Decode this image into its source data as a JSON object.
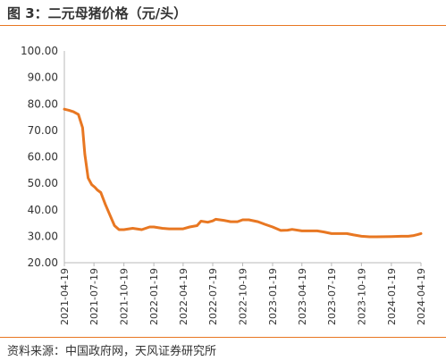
{
  "title": "图 3：二元母猪价格（元/头）",
  "source": "资料来源：中国政府网，天风证券研究所",
  "colors": {
    "accent": "#e87722",
    "line": "#e87722",
    "axis": "#b8b8b8"
  },
  "chart_data": {
    "type": "line",
    "title": "图 3：二元母猪价格（元/头）",
    "xlabel": "",
    "ylabel": "",
    "ylim": [
      20,
      100
    ],
    "yticks": [
      "100.00",
      "90.00",
      "80.00",
      "70.00",
      "60.00",
      "50.00",
      "40.00",
      "30.00",
      "20.00"
    ],
    "xticks": [
      "2021-04-19",
      "2021-07-19",
      "2021-10-19",
      "2022-01-19",
      "2022-04-19",
      "2022-07-19",
      "2022-10-19",
      "2023-01-19",
      "2023-04-19",
      "2023-07-19",
      "2023-10-19",
      "2024-01-19",
      "2024-04-19"
    ],
    "grid": false,
    "legend": "none",
    "series": [
      {
        "name": "",
        "points": [
          [
            "2021-04-19",
            78.0
          ],
          [
            "2021-05-03",
            77.6
          ],
          [
            "2021-05-17",
            77.0
          ],
          [
            "2021-06-01",
            76.0
          ],
          [
            "2021-06-14",
            71.0
          ],
          [
            "2021-06-21",
            61.0
          ],
          [
            "2021-07-01",
            52.0
          ],
          [
            "2021-07-12",
            49.5
          ],
          [
            "2021-07-22",
            48.5
          ],
          [
            "2021-07-29",
            47.5
          ],
          [
            "2021-08-09",
            46.5
          ],
          [
            "2021-08-23",
            42.0
          ],
          [
            "2021-09-06",
            38.0
          ],
          [
            "2021-09-20",
            34.0
          ],
          [
            "2021-10-04",
            32.5
          ],
          [
            "2021-10-19",
            32.5
          ],
          [
            "2021-11-15",
            33.0
          ],
          [
            "2021-12-13",
            32.5
          ],
          [
            "2022-01-06",
            33.5
          ],
          [
            "2022-01-19",
            33.5
          ],
          [
            "2022-02-14",
            33.0
          ],
          [
            "2022-03-07",
            32.8
          ],
          [
            "2022-04-19",
            32.8
          ],
          [
            "2022-05-09",
            33.5
          ],
          [
            "2022-06-01",
            34.0
          ],
          [
            "2022-06-13",
            35.7
          ],
          [
            "2022-07-04",
            35.3
          ],
          [
            "2022-07-19",
            35.8
          ],
          [
            "2022-07-28",
            36.4
          ],
          [
            "2022-08-22",
            36.0
          ],
          [
            "2022-09-12",
            35.5
          ],
          [
            "2022-10-03",
            35.5
          ],
          [
            "2022-10-19",
            36.2
          ],
          [
            "2022-11-07",
            36.2
          ],
          [
            "2022-12-05",
            35.5
          ],
          [
            "2022-12-26",
            34.5
          ],
          [
            "2023-01-19",
            33.5
          ],
          [
            "2023-02-13",
            32.2
          ],
          [
            "2023-03-06",
            32.3
          ],
          [
            "2023-03-20",
            32.6
          ],
          [
            "2023-04-19",
            32.0
          ],
          [
            "2023-05-15",
            32.0
          ],
          [
            "2023-06-05",
            32.0
          ],
          [
            "2023-06-26",
            31.6
          ],
          [
            "2023-07-19",
            31.0
          ],
          [
            "2023-08-14",
            31.0
          ],
          [
            "2023-09-04",
            31.0
          ],
          [
            "2023-09-25",
            30.5
          ],
          [
            "2023-10-19",
            30.0
          ],
          [
            "2023-11-13",
            29.8
          ],
          [
            "2023-12-04",
            29.8
          ],
          [
            "2024-01-19",
            29.9
          ],
          [
            "2024-02-19",
            30.0
          ],
          [
            "2024-03-11",
            30.0
          ],
          [
            "2024-03-25",
            30.2
          ],
          [
            "2024-04-08",
            30.6
          ],
          [
            "2024-04-19",
            31.0
          ]
        ]
      }
    ]
  }
}
